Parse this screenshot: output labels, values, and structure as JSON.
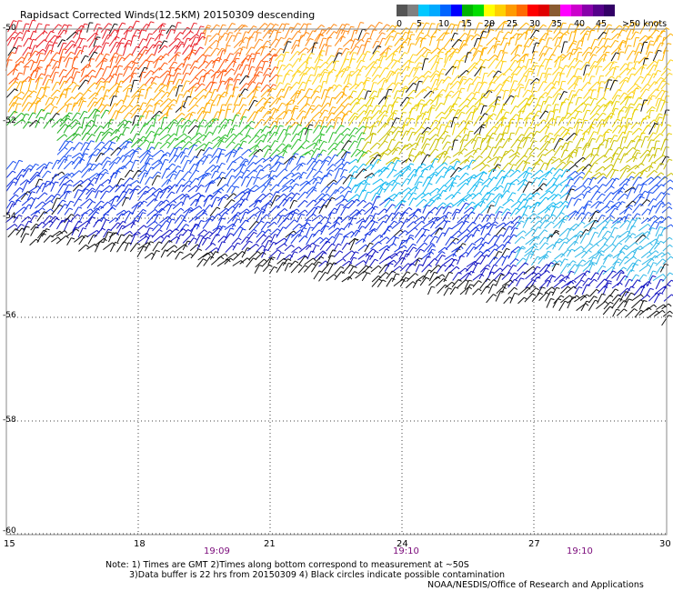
{
  "title": "Rapidsact Corrected Winds(12.5KM) 20150309 descending",
  "legend": {
    "labels": [
      "0",
      "5",
      "10",
      "15",
      "20",
      "25",
      "30",
      "35",
      "40",
      "45",
      ">50 knots"
    ],
    "colors": [
      "#555555",
      "#808080",
      "#00c8ff",
      "#0064ff",
      "#00b400",
      "#ffff00",
      "#ff9a00",
      "#ff0000",
      "#8a5a30",
      "#ff00ff",
      "#8800aa"
    ]
  },
  "axes": {
    "lat_labels": [
      "-50",
      "-52",
      "-54",
      "-56",
      "-58",
      "-60"
    ],
    "lon_labels": [
      "15",
      "18",
      "21",
      "24",
      "27",
      "30"
    ],
    "time_labels": [
      "19:09",
      "19:10",
      "19:10"
    ]
  },
  "notes": {
    "line1": "Note: 1) Times are GMT 2)Times along bottom correspond to measurement at ~50S",
    "line2": "3)Data buffer is 22 hrs from 20150309 4) Black circles indicate possible contamination",
    "line3": "NOAA/NESDIS/Office of Research and Applications"
  }
}
